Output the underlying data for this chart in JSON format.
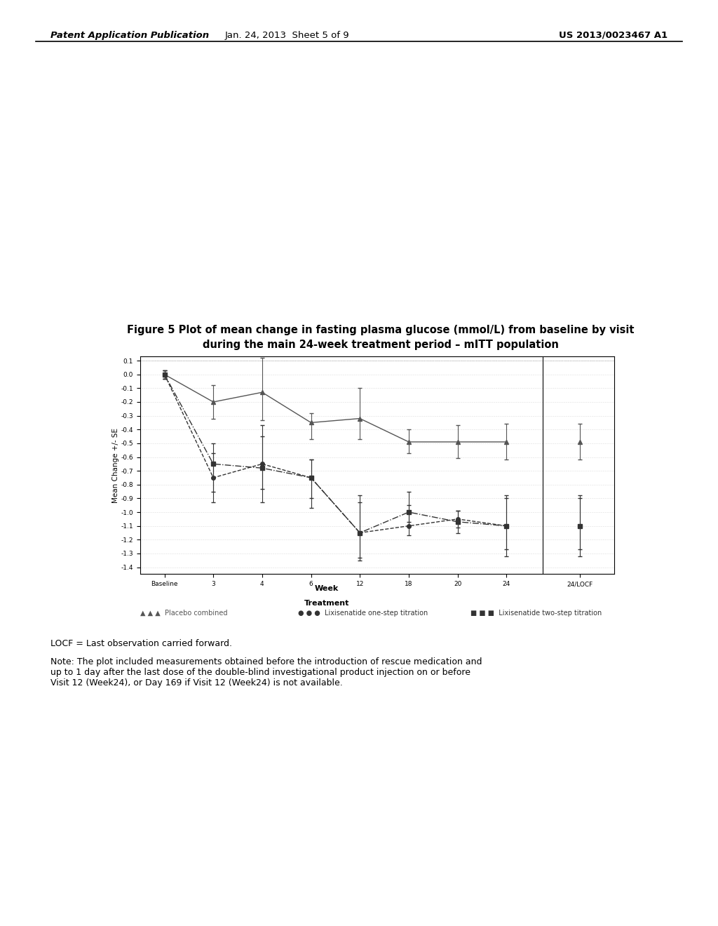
{
  "title_line1": "Figure 5 Plot of mean change in fasting plasma glucose (mmol/L) from baseline by visit",
  "title_line2": "during the main 24-week treatment period – mITT population",
  "ylabel": "Mean Change +/- SE",
  "xlabel_main": "Week",
  "xlabel_sub": "Treatment",
  "background_color": "#ffffff",
  "plot_bg": "#ffffff",
  "x_labels": [
    "Baseline",
    "3",
    "4",
    "6",
    "12",
    "18",
    "20",
    "24",
    "24/LOCF"
  ],
  "x_positions": [
    0,
    1,
    2,
    3,
    4,
    5,
    6,
    7,
    8.5
  ],
  "ylim": [
    -1.45,
    0.13
  ],
  "yticks": [
    0.1,
    0.0,
    -0.1,
    -0.2,
    -0.3,
    -0.4,
    -0.5,
    -0.6,
    -0.7,
    -0.8,
    -0.9,
    -1.0,
    -1.1,
    -1.2,
    -1.3,
    -1.4
  ],
  "placebo": {
    "y": [
      0.0,
      -0.2,
      -0.13,
      -0.35,
      -0.32,
      -0.49,
      -0.49,
      -0.49,
      -0.49
    ],
    "yerr_lo": [
      0.03,
      0.12,
      0.2,
      0.12,
      0.15,
      0.08,
      0.12,
      0.13,
      0.13
    ],
    "yerr_hi": [
      0.03,
      0.12,
      0.25,
      0.07,
      0.22,
      0.09,
      0.12,
      0.13,
      0.13
    ],
    "marker": "^",
    "color": "#555555",
    "label": "Placebo combined",
    "linestyle": "-"
  },
  "one_step": {
    "y": [
      0.0,
      -0.75,
      -0.65,
      -0.75,
      -1.15,
      -1.1,
      -1.05,
      -1.1,
      -1.1
    ],
    "yerr_lo": [
      0.03,
      0.18,
      0.18,
      0.22,
      0.18,
      0.07,
      0.06,
      0.22,
      0.22
    ],
    "yerr_hi": [
      0.03,
      0.18,
      0.28,
      0.13,
      0.27,
      0.15,
      0.06,
      0.22,
      0.22
    ],
    "marker": "o",
    "color": "#333333",
    "label": "Lixisenatide one-step titration",
    "linestyle": "--"
  },
  "two_step": {
    "y": [
      0.0,
      -0.65,
      -0.68,
      -0.75,
      -1.15,
      -1.0,
      -1.07,
      -1.1,
      -1.1
    ],
    "yerr_lo": [
      0.03,
      0.2,
      0.25,
      0.15,
      0.2,
      0.07,
      0.08,
      0.17,
      0.17
    ],
    "yerr_hi": [
      0.03,
      0.15,
      0.23,
      0.13,
      0.22,
      0.15,
      0.08,
      0.2,
      0.2
    ],
    "marker": "s",
    "color": "#333333",
    "label": "Lixisenatide two-step titration",
    "linestyle": "-."
  },
  "footer_locf": "LOCF = Last observation carried forward.",
  "footer_note": "Note: The plot included measurements obtained before the introduction of rescue medication and\nup to 1 day after the last dose of the double-blind investigational product injection on or before\nVisit 12 (Week24), or Day 169 if Visit 12 (Week24) is not available.",
  "header_left": "Patent Application Publication",
  "header_center": "Jan. 24, 2013  Sheet 5 of 9",
  "header_right": "US 2013/0023467 A1"
}
